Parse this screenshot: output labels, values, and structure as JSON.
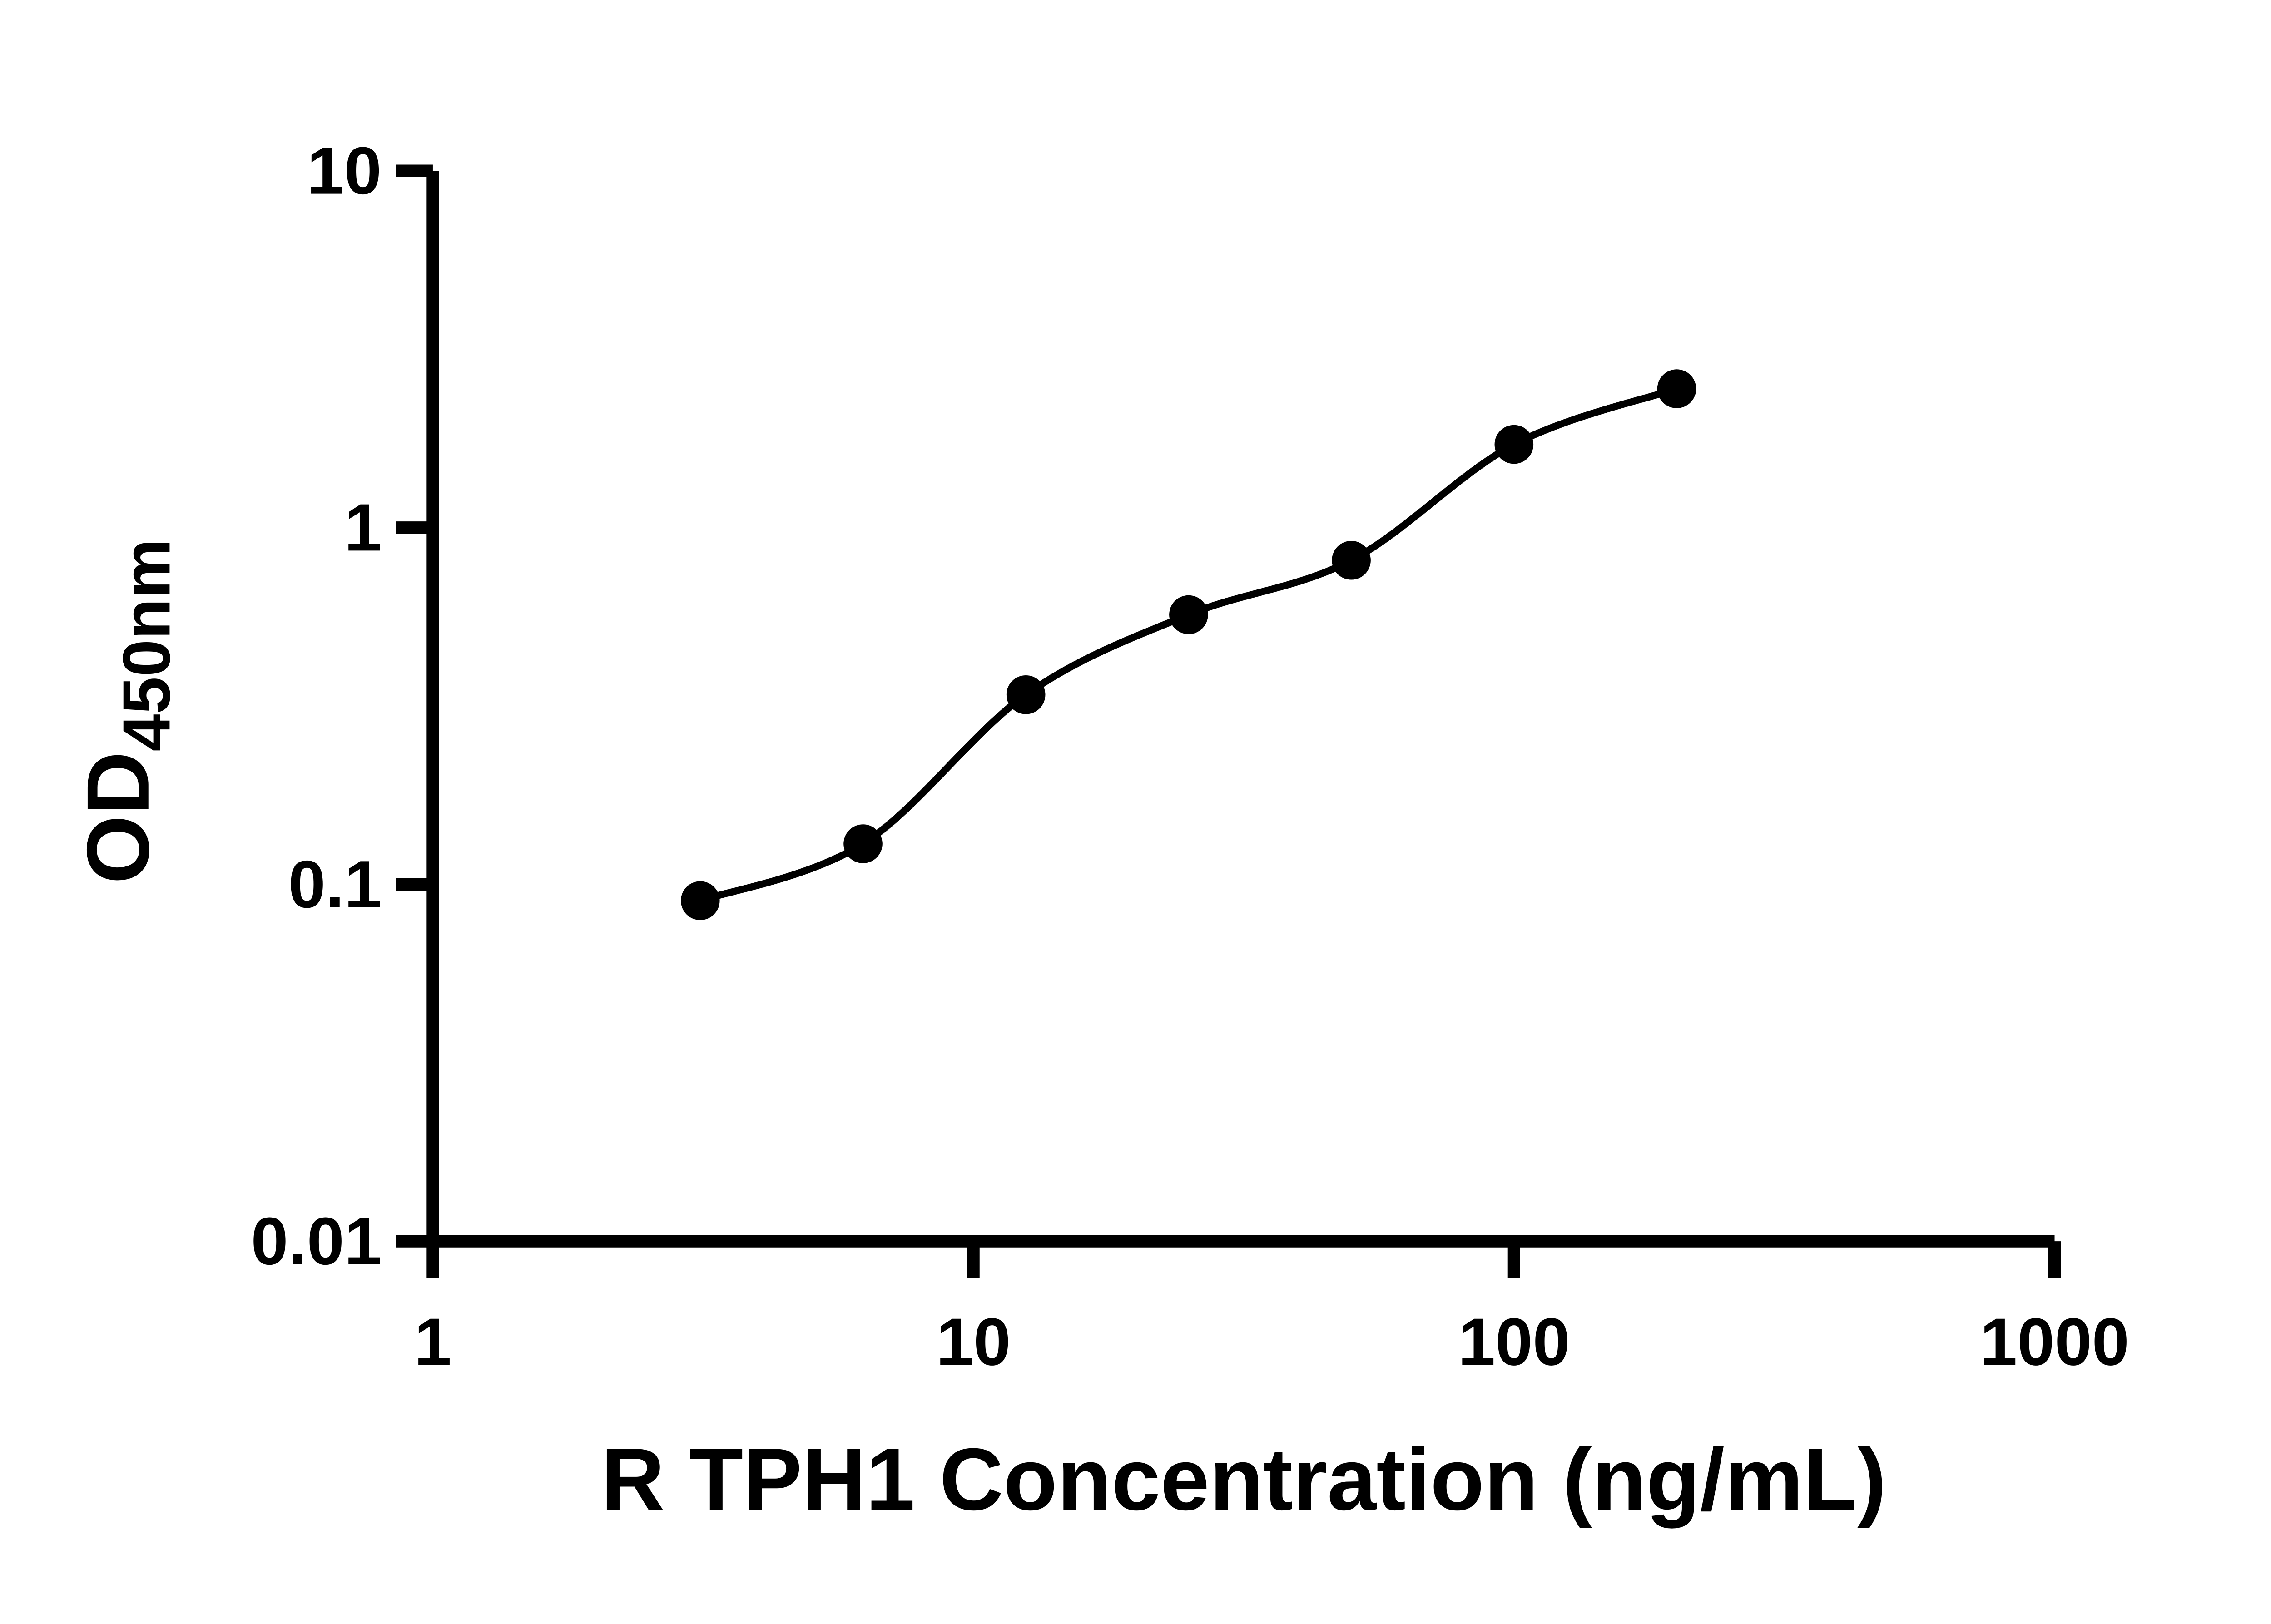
{
  "figure": {
    "background": "#ffffff",
    "ink_color": "#000000"
  },
  "chart_data": {
    "type": "scatter",
    "title": "",
    "xlabel": "R TPH1 Concentration (ng/mL)",
    "ylabel": "OD450nm",
    "ylabel_main": "OD",
    "ylabel_sub": "450nm",
    "x_scale": "log",
    "y_scale": "log",
    "xlim": [
      1,
      1000
    ],
    "ylim": [
      0.01,
      10
    ],
    "x_ticks": [
      {
        "v": 1,
        "label": "1"
      },
      {
        "v": 10,
        "label": "10"
      },
      {
        "v": 100,
        "label": "100"
      },
      {
        "v": 1000,
        "label": "1000"
      }
    ],
    "y_ticks": [
      {
        "v": 0.01,
        "label": "0.01"
      },
      {
        "v": 0.1,
        "label": "0.1"
      },
      {
        "v": 1,
        "label": "1"
      },
      {
        "v": 10,
        "label": "10"
      }
    ],
    "series": [
      {
        "points": [
          {
            "x": 3.125,
            "y": 0.09
          },
          {
            "x": 6.25,
            "y": 0.13
          },
          {
            "x": 12.5,
            "y": 0.34
          },
          {
            "x": 25,
            "y": 0.57
          },
          {
            "x": 50,
            "y": 0.81
          },
          {
            "x": 100,
            "y": 1.71
          },
          {
            "x": 200,
            "y": 2.45
          }
        ],
        "marker": "circle",
        "marker_color": "#000000",
        "line": "smooth-fit",
        "line_color": "#000000"
      }
    ],
    "grid": false,
    "legend": "none"
  }
}
